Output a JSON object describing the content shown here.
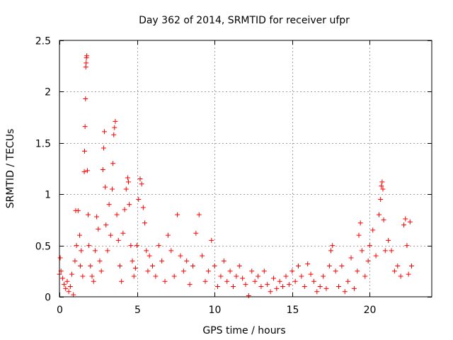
{
  "chart_data": {
    "type": "scatter",
    "title": "Day 362 of 2014, SRMTID for receiver ufpr",
    "xlabel": "GPS time / hours",
    "ylabel": "SRMTID / TECUs",
    "xlim": [
      0,
      24
    ],
    "ylim": [
      0,
      2.5
    ],
    "xticks": [
      0,
      5,
      10,
      15,
      20
    ],
    "xtick_labels": [
      "0",
      "5",
      "10",
      "15",
      "20"
    ],
    "yticks": [
      0,
      0.5,
      1,
      1.5,
      2,
      2.5
    ],
    "ytick_labels": [
      "0",
      "0.5",
      "1",
      "1.5",
      "2",
      "2.5"
    ],
    "grid": true,
    "marker": "+",
    "color": "#ff0000",
    "series": [
      {
        "name": "SRMTID",
        "points": [
          [
            0.0,
            0.22
          ],
          [
            0.05,
            0.38
          ],
          [
            0.1,
            0.25
          ],
          [
            0.2,
            0.18
          ],
          [
            0.3,
            0.12
          ],
          [
            0.4,
            0.08
          ],
          [
            0.5,
            0.15
          ],
          [
            0.6,
            0.05
          ],
          [
            0.7,
            0.1
          ],
          [
            0.8,
            0.22
          ],
          [
            0.9,
            0.02
          ],
          [
            1.0,
            0.35
          ],
          [
            1.05,
            0.84
          ],
          [
            1.1,
            0.5
          ],
          [
            1.2,
            0.84
          ],
          [
            1.3,
            0.6
          ],
          [
            1.35,
            0.3
          ],
          [
            1.4,
            0.45
          ],
          [
            1.5,
            0.2
          ],
          [
            1.6,
            1.22
          ],
          [
            1.62,
            1.42
          ],
          [
            1.65,
            1.66
          ],
          [
            1.68,
            1.93
          ],
          [
            1.7,
            2.24
          ],
          [
            1.72,
            2.28
          ],
          [
            1.74,
            2.33
          ],
          [
            1.76,
            2.35
          ],
          [
            1.8,
            1.23
          ],
          [
            1.85,
            0.8
          ],
          [
            1.9,
            0.5
          ],
          [
            2.0,
            0.3
          ],
          [
            2.1,
            0.2
          ],
          [
            2.2,
            0.15
          ],
          [
            2.3,
            0.45
          ],
          [
            2.4,
            0.78
          ],
          [
            2.5,
            0.66
          ],
          [
            2.6,
            0.35
          ],
          [
            2.7,
            0.25
          ],
          [
            2.8,
            1.24
          ],
          [
            2.85,
            1.45
          ],
          [
            2.9,
            1.61
          ],
          [
            2.95,
            1.07
          ],
          [
            3.0,
            0.7
          ],
          [
            3.1,
            0.45
          ],
          [
            3.2,
            0.9
          ],
          [
            3.3,
            0.6
          ],
          [
            3.4,
            1.05
          ],
          [
            3.45,
            1.3
          ],
          [
            3.5,
            1.58
          ],
          [
            3.55,
            1.65
          ],
          [
            3.6,
            1.71
          ],
          [
            3.7,
            0.8
          ],
          [
            3.8,
            0.55
          ],
          [
            3.9,
            0.3
          ],
          [
            4.0,
            0.15
          ],
          [
            4.1,
            0.62
          ],
          [
            4.2,
            0.85
          ],
          [
            4.3,
            1.05
          ],
          [
            4.4,
            1.16
          ],
          [
            4.45,
            1.12
          ],
          [
            4.5,
            0.9
          ],
          [
            4.6,
            0.5
          ],
          [
            4.7,
            0.35
          ],
          [
            4.8,
            0.2
          ],
          [
            4.9,
            0.28
          ],
          [
            5.0,
            0.5
          ],
          [
            5.1,
            0.95
          ],
          [
            5.2,
            1.15
          ],
          [
            5.3,
            1.1
          ],
          [
            5.4,
            0.87
          ],
          [
            5.5,
            0.72
          ],
          [
            5.6,
            0.45
          ],
          [
            5.7,
            0.25
          ],
          [
            5.8,
            0.4
          ],
          [
            6.0,
            0.3
          ],
          [
            6.2,
            0.2
          ],
          [
            6.4,
            0.5
          ],
          [
            6.6,
            0.35
          ],
          [
            6.8,
            0.15
          ],
          [
            7.0,
            0.6
          ],
          [
            7.2,
            0.45
          ],
          [
            7.4,
            0.2
          ],
          [
            7.6,
            0.8
          ],
          [
            7.8,
            0.4
          ],
          [
            8.0,
            0.25
          ],
          [
            8.2,
            0.35
          ],
          [
            8.4,
            0.12
          ],
          [
            8.6,
            0.3
          ],
          [
            8.8,
            0.62
          ],
          [
            9.0,
            0.8
          ],
          [
            9.2,
            0.4
          ],
          [
            9.4,
            0.15
          ],
          [
            9.6,
            0.25
          ],
          [
            9.8,
            0.55
          ],
          [
            10.0,
            0.3
          ],
          [
            10.2,
            0.1
          ],
          [
            10.4,
            0.2
          ],
          [
            10.6,
            0.35
          ],
          [
            10.8,
            0.15
          ],
          [
            11.0,
            0.25
          ],
          [
            11.2,
            0.1
          ],
          [
            11.4,
            0.2
          ],
          [
            11.6,
            0.3
          ],
          [
            11.8,
            0.18
          ],
          [
            12.0,
            0.12
          ],
          [
            12.2,
            0.01
          ],
          [
            12.4,
            0.25
          ],
          [
            12.6,
            0.15
          ],
          [
            12.8,
            0.2
          ],
          [
            13.0,
            0.1
          ],
          [
            13.2,
            0.25
          ],
          [
            13.4,
            0.12
          ],
          [
            13.6,
            0.05
          ],
          [
            13.8,
            0.18
          ],
          [
            14.0,
            0.08
          ],
          [
            14.2,
            0.15
          ],
          [
            14.4,
            0.1
          ],
          [
            14.6,
            0.2
          ],
          [
            14.8,
            0.12
          ],
          [
            15.0,
            0.25
          ],
          [
            15.2,
            0.15
          ],
          [
            15.4,
            0.3
          ],
          [
            15.6,
            0.2
          ],
          [
            15.8,
            0.1
          ],
          [
            16.0,
            0.32
          ],
          [
            16.2,
            0.22
          ],
          [
            16.4,
            0.15
          ],
          [
            16.6,
            0.05
          ],
          [
            16.8,
            0.1
          ],
          [
            17.0,
            0.2
          ],
          [
            17.2,
            0.08
          ],
          [
            17.4,
            0.3
          ],
          [
            17.5,
            0.45
          ],
          [
            17.6,
            0.5
          ],
          [
            17.8,
            0.25
          ],
          [
            18.0,
            0.1
          ],
          [
            18.2,
            0.3
          ],
          [
            18.4,
            0.05
          ],
          [
            18.6,
            0.15
          ],
          [
            18.8,
            0.38
          ],
          [
            19.0,
            0.08
          ],
          [
            19.2,
            0.25
          ],
          [
            19.3,
            0.6
          ],
          [
            19.4,
            0.72
          ],
          [
            19.5,
            0.45
          ],
          [
            19.7,
            0.2
          ],
          [
            19.9,
            0.35
          ],
          [
            20.0,
            0.5
          ],
          [
            20.2,
            0.65
          ],
          [
            20.4,
            0.4
          ],
          [
            20.6,
            0.8
          ],
          [
            20.7,
            0.95
          ],
          [
            20.75,
            1.08
          ],
          [
            20.8,
            1.12
          ],
          [
            20.85,
            1.05
          ],
          [
            20.9,
            0.75
          ],
          [
            21.0,
            0.45
          ],
          [
            21.2,
            0.55
          ],
          [
            21.4,
            0.45
          ],
          [
            21.6,
            0.25
          ],
          [
            21.8,
            0.3
          ],
          [
            22.0,
            0.2
          ],
          [
            22.2,
            0.7
          ],
          [
            22.3,
            0.76
          ],
          [
            22.4,
            0.5
          ],
          [
            22.5,
            0.22
          ],
          [
            22.6,
            0.73
          ],
          [
            22.7,
            0.3
          ]
        ]
      }
    ]
  }
}
